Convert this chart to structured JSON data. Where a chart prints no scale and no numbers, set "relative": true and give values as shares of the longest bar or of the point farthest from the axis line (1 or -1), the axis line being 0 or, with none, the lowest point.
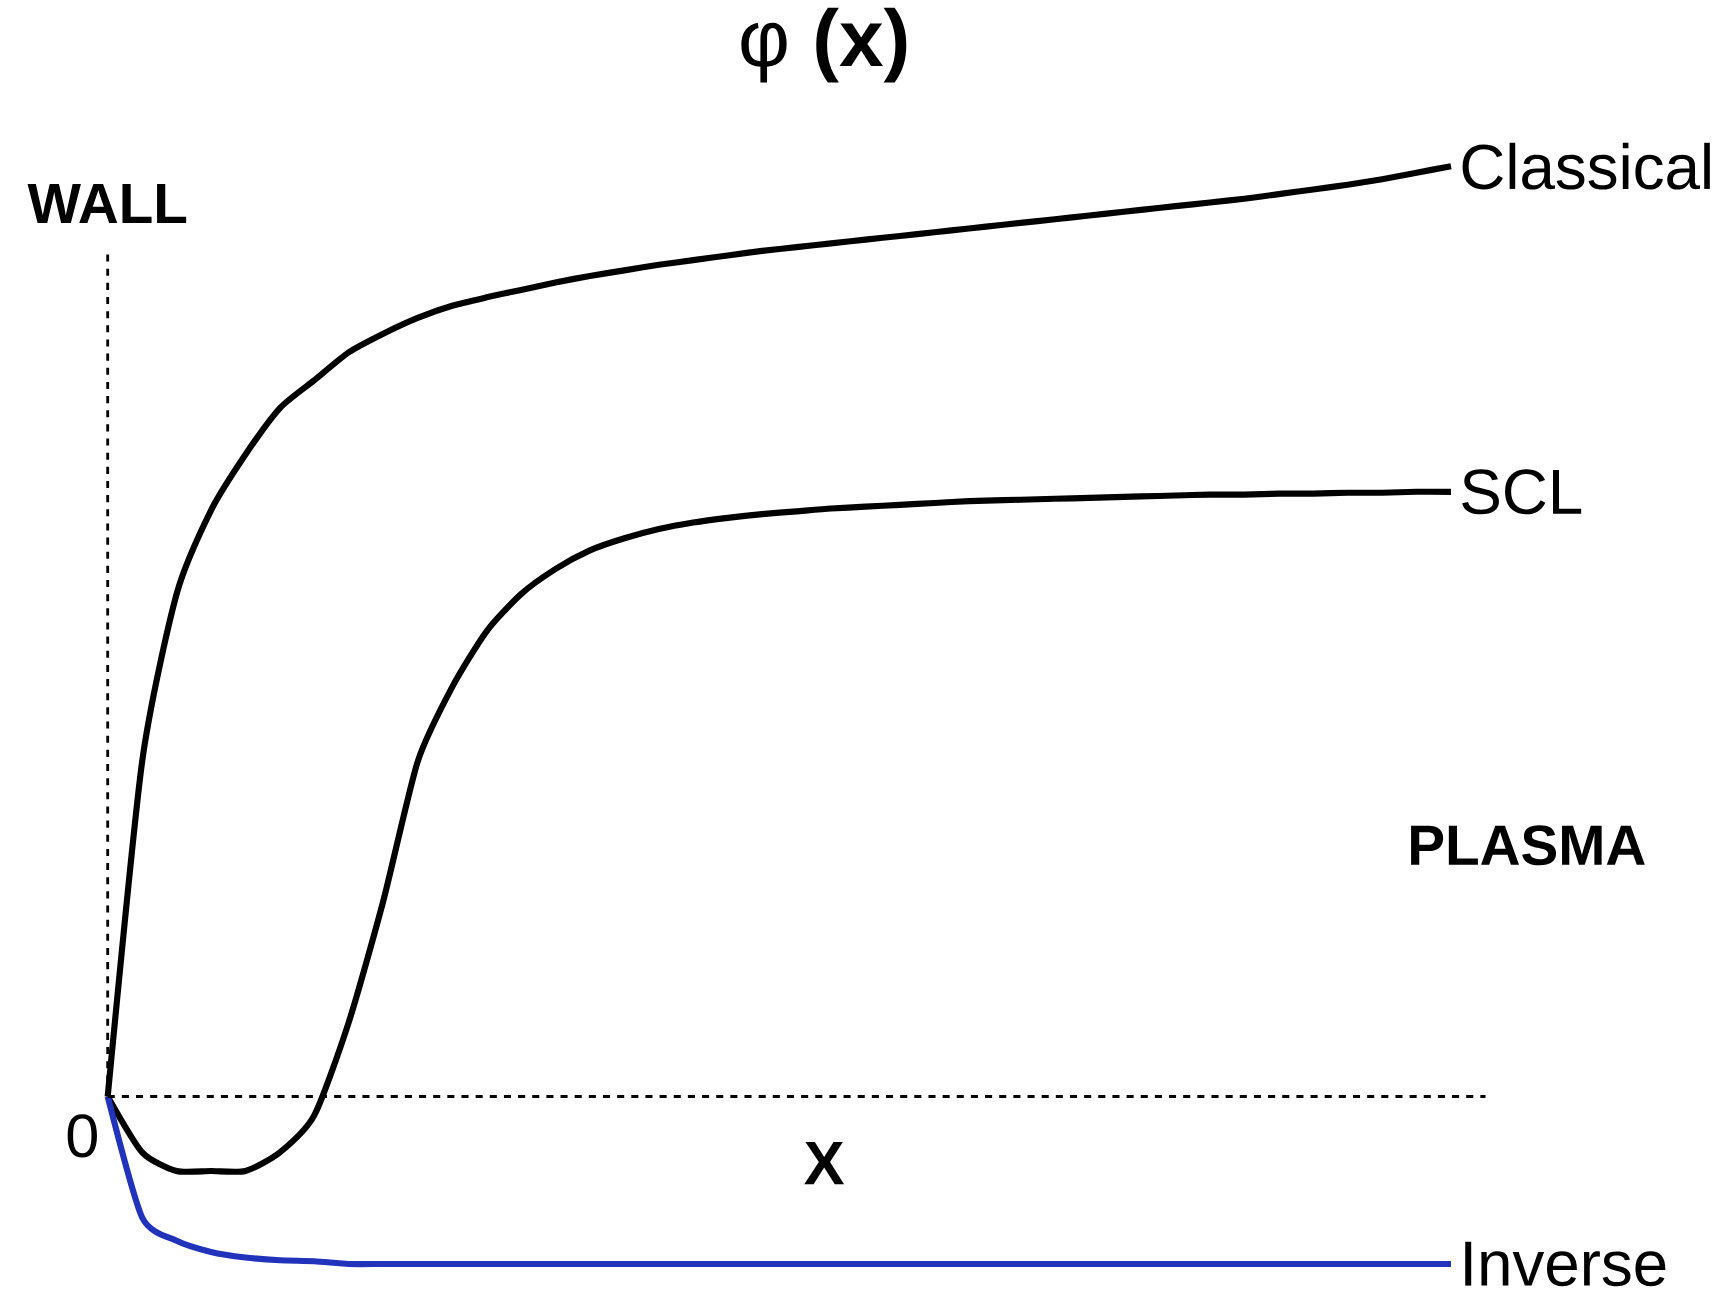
{
  "chart_data": {
    "type": "line",
    "title": "φ **(x)**",
    "xlabel": "X",
    "relative": true,
    "line_style": "dashed",
    "categories": [
      null,
      null,
      null,
      null,
      null,
      null,
      null,
      null,
      null,
      null,
      null,
      null,
      null,
      null,
      null,
      null,
      null,
      null,
      null,
      null,
      null,
      null,
      null,
      null,
      null,
      null,
      null,
      null,
      null,
      null,
      null,
      null,
      null,
      null,
      null,
      null,
      null,
      null,
      null,
      null
    ],
    "series": [
      {
        "name": "Classical",
        "color": "#000000",
        "line_style": "solid",
        "values": [
          0,
          0.36,
          0.54,
          0.63,
          0.69,
          0.74,
          0.77,
          0.8,
          0.82,
          0.837,
          0.85,
          0.859,
          0.867,
          0.875,
          0.882,
          0.888,
          0.894,
          0.899,
          0.904,
          0.909,
          0.913,
          0.917,
          0.921,
          0.925,
          0.929,
          0.933,
          0.937,
          0.941,
          0.945,
          0.949,
          0.953,
          0.957,
          0.961,
          0.965,
          0.97,
          0.975,
          0.98,
          0.986,
          0.993,
          1.0
        ]
      },
      {
        "name": "SCL",
        "color": "#000000",
        "line_style": "solid",
        "values": [
          0,
          -0.06,
          -0.08,
          -0.08,
          -0.08,
          -0.06,
          -0.02,
          0.08,
          0.21,
          0.36,
          0.44,
          0.5,
          0.54,
          0.567,
          0.587,
          0.6,
          0.61,
          0.617,
          0.622,
          0.626,
          0.629,
          0.632,
          0.634,
          0.636,
          0.638,
          0.64,
          0.641,
          0.642,
          0.643,
          0.644,
          0.645,
          0.646,
          0.647,
          0.647,
          0.648,
          0.648,
          0.649,
          0.649,
          0.65,
          0.65
        ]
      },
      {
        "name": "Inverse",
        "color": "#2233bb",
        "line_style": "solid",
        "values": [
          0,
          -0.13,
          -0.155,
          -0.167,
          -0.173,
          -0.176,
          -0.177,
          -0.18,
          -0.18,
          -0.18,
          -0.18,
          -0.18,
          -0.18,
          -0.18,
          -0.18,
          -0.18,
          -0.18,
          -0.18,
          -0.18,
          -0.18,
          -0.18,
          -0.18,
          -0.18,
          -0.18,
          -0.18,
          -0.18,
          -0.18,
          -0.18,
          -0.18,
          -0.18,
          -0.18,
          -0.18,
          -0.18,
          -0.18,
          -0.18,
          -0.18,
          -0.18,
          -0.18,
          -0.18,
          -0.18
        ]
      }
    ],
    "ref_lines": [
      {
        "axis": "y",
        "value": 0,
        "line_style": "dashed"
      }
    ],
    "annotations": [
      "WALL",
      "0",
      "PLASMA"
    ]
  }
}
